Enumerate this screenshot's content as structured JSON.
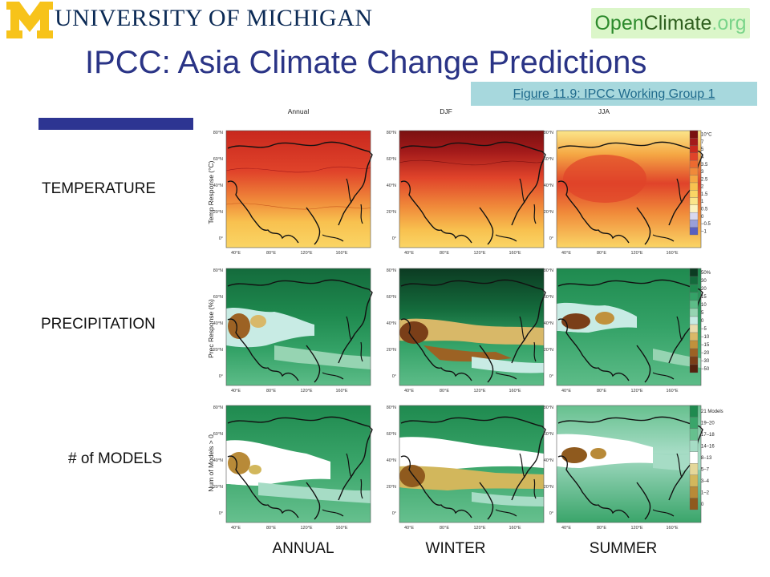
{
  "header": {
    "university_name": "UNIVERSITY OF MICHIGAN",
    "opencl_part1": "Open",
    "opencl_part2": "Climate",
    "opencl_part3": ".org"
  },
  "slide": {
    "title": "IPCC: Asia Climate Change Predictions",
    "figure_link": "Figure 11.9: IPCC Working Group 1"
  },
  "labels": {
    "rows": [
      "TEMPERATURE",
      "PRECIPITATION",
      "# of MODELS"
    ],
    "columns": [
      "ANNUAL",
      "WINTER",
      "SUMMER"
    ]
  },
  "figure": {
    "column_titles": [
      "Annual",
      "DJF",
      "JJA"
    ],
    "row_titles": [
      "Temp Response (°C)",
      "Prec Response (%)",
      "Num of Models > 0"
    ],
    "lat_ticks": [
      "80°N",
      "60°N",
      "40°N",
      "20°N",
      "0°"
    ],
    "lon_ticks": [
      "40°E",
      "80°E",
      "120°E",
      "160°E"
    ],
    "legends": [
      {
        "labels": [
          "10°C",
          "7",
          "5",
          "4",
          "3.5",
          "3",
          "2.5",
          "2",
          "1.5",
          "1",
          "0.5",
          "0",
          "−0.5",
          "−1"
        ],
        "colors": [
          "#7a1010",
          "#a31a1a",
          "#c8281e",
          "#e0432a",
          "#ec6a30",
          "#f08a3a",
          "#f5a844",
          "#f8c14f",
          "#fad565",
          "#fbe58a",
          "#fdf3bf",
          "#d8d8ee",
          "#9a9fd8",
          "#5a60c0"
        ]
      },
      {
        "labels": [
          "50%",
          "30",
          "20",
          "15",
          "10",
          "5",
          "0",
          "−5",
          "−10",
          "−15",
          "−20",
          "−30",
          "−50"
        ],
        "colors": [
          "#0c3b22",
          "#146b3c",
          "#1f8a4f",
          "#34a267",
          "#5dbc88",
          "#96d4b2",
          "#c8ebe4",
          "#e9dcae",
          "#d8b868",
          "#c0913c",
          "#9c6224",
          "#7a3e18",
          "#54220e"
        ]
      },
      {
        "labels": [
          "21 Models",
          "19–20",
          "17–18",
          "14–16",
          "8–13",
          "5–7",
          "3–4",
          "1–2",
          "0"
        ],
        "colors": [
          "#1f8a4f",
          "#3aa56a",
          "#66c08e",
          "#a6dcc5",
          "#ffffff",
          "#e4d79a",
          "#d2b75c",
          "#b88a38",
          "#8f5a1e"
        ]
      }
    ]
  }
}
